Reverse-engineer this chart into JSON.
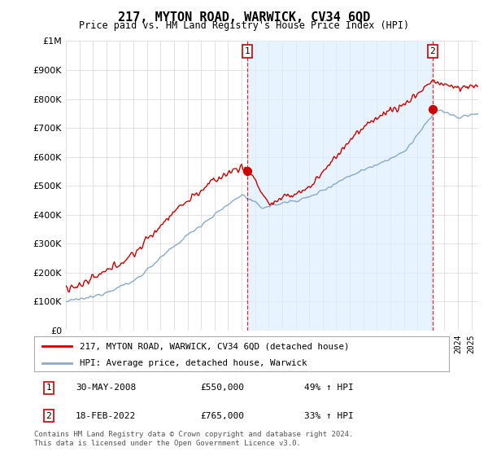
{
  "title": "217, MYTON ROAD, WARWICK, CV34 6QD",
  "subtitle": "Price paid vs. HM Land Registry's House Price Index (HPI)",
  "ylim": [
    0,
    1000000
  ],
  "yticks": [
    0,
    100000,
    200000,
    300000,
    400000,
    500000,
    600000,
    700000,
    800000,
    900000,
    1000000
  ],
  "xlim_start": 1995.0,
  "xlim_end": 2025.5,
  "red_line_label": "217, MYTON ROAD, WARWICK, CV34 6QD (detached house)",
  "blue_line_label": "HPI: Average price, detached house, Warwick",
  "transaction1_date": "30-MAY-2008",
  "transaction1_price": "£550,000",
  "transaction1_hpi": "49% ↑ HPI",
  "transaction1_x": 2008.42,
  "transaction1_y": 550000,
  "transaction2_date": "18-FEB-2022",
  "transaction2_price": "£765,000",
  "transaction2_hpi": "33% ↑ HPI",
  "transaction2_x": 2022.12,
  "transaction2_y": 765000,
  "footer": "Contains HM Land Registry data © Crown copyright and database right 2024.\nThis data is licensed under the Open Government Licence v3.0.",
  "red_color": "#cc0000",
  "blue_color": "#88aacc",
  "shade_color": "#ddeeff",
  "bg_color": "#ffffff",
  "grid_color": "#dddddd",
  "legend_border_color": "#aaaaaa"
}
